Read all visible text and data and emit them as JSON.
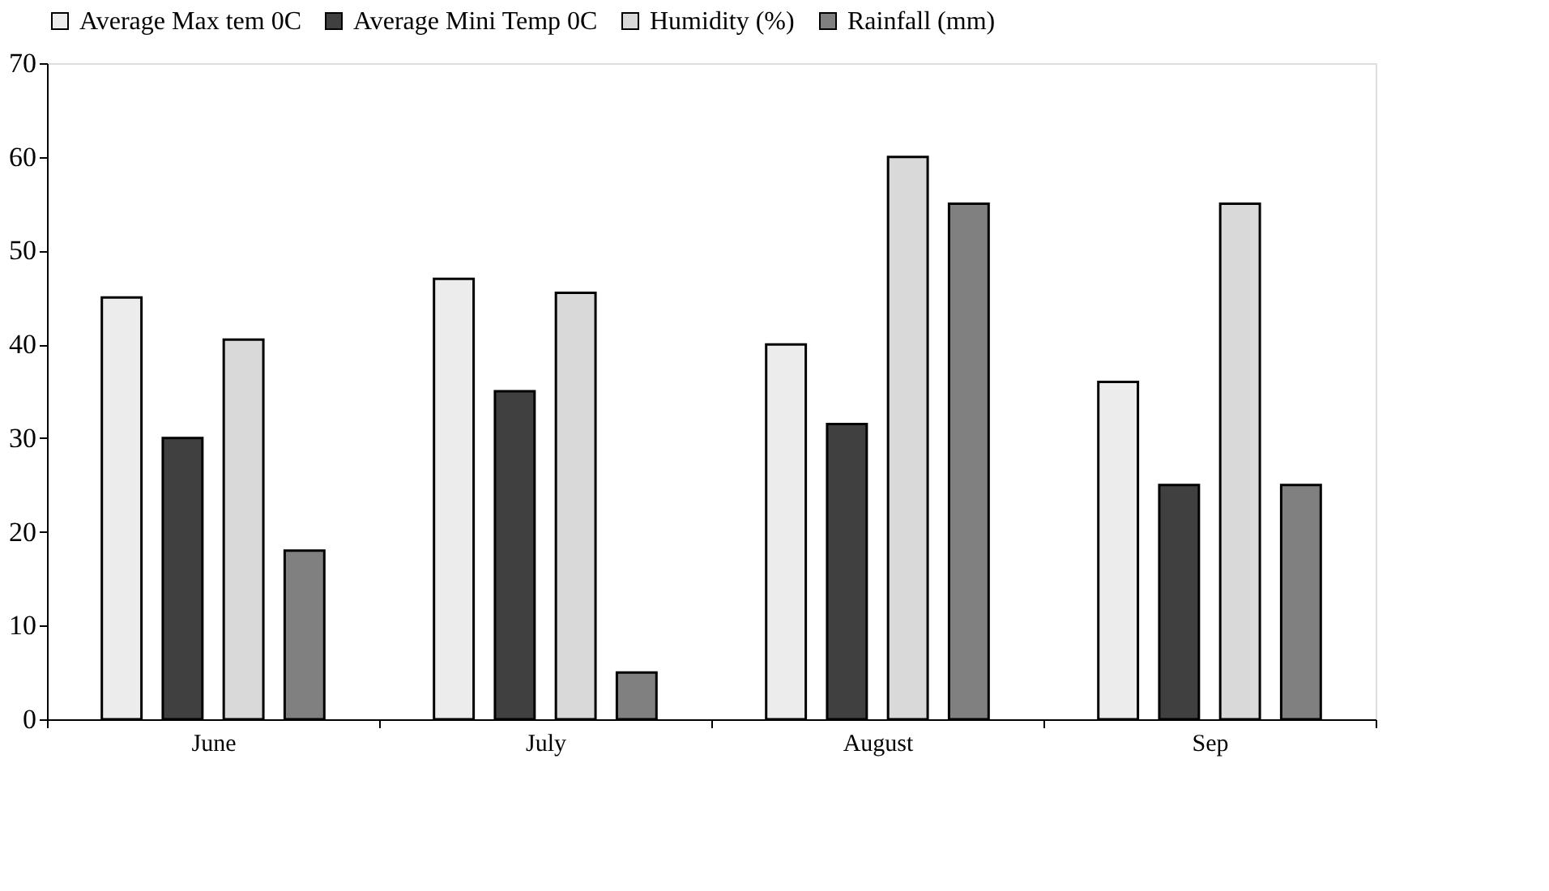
{
  "chart_data": {
    "type": "bar",
    "categories": [
      "June",
      "July",
      "August",
      "Sep"
    ],
    "series": [
      {
        "name": "Average Max tem 0C",
        "color": "#ececec",
        "values": [
          45,
          47,
          40,
          36
        ]
      },
      {
        "name": "Average Mini Temp 0C",
        "color": "#404040",
        "values": [
          30,
          35,
          31.5,
          25
        ]
      },
      {
        "name": "Humidity (%)",
        "color": "#d9d9d9",
        "values": [
          40.5,
          45.5,
          60,
          55
        ]
      },
      {
        "name": "Rainfall (mm)",
        "color": "#808080",
        "values": [
          18,
          5,
          55,
          25
        ]
      }
    ],
    "ylim": [
      0,
      70
    ],
    "yticks": [
      0,
      10,
      20,
      30,
      40,
      50,
      60,
      70
    ],
    "grid": false,
    "legend": "top"
  }
}
